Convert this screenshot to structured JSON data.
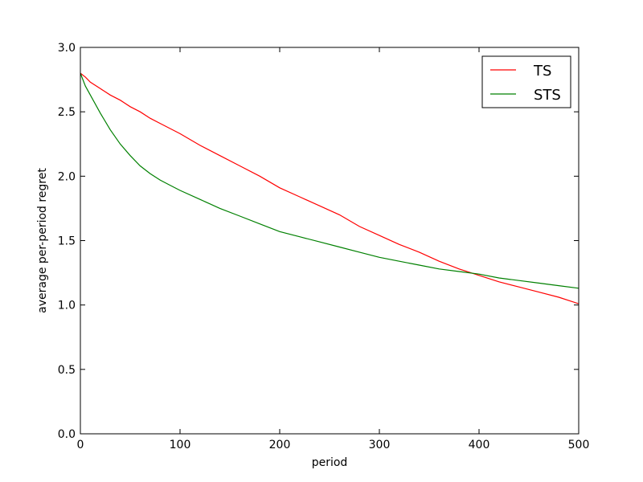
{
  "chart_data": {
    "type": "line",
    "title": "",
    "xlabel": "period",
    "ylabel": "average per-period regret",
    "xlim": [
      0,
      500
    ],
    "ylim": [
      0.0,
      3.0
    ],
    "x_ticks": [
      0,
      100,
      200,
      300,
      400,
      500
    ],
    "y_ticks": [
      0.0,
      0.5,
      1.0,
      1.5,
      2.0,
      2.5,
      3.0
    ],
    "x_tick_labels": [
      "0",
      "100",
      "200",
      "300",
      "400",
      "500"
    ],
    "y_tick_labels": [
      "0.0",
      "0.5",
      "1.0",
      "1.5",
      "2.0",
      "2.5",
      "3.0"
    ],
    "grid": false,
    "legend_position": "top-right",
    "x": [
      0,
      5,
      10,
      20,
      30,
      40,
      50,
      60,
      70,
      80,
      90,
      100,
      120,
      140,
      160,
      180,
      200,
      220,
      240,
      260,
      280,
      300,
      320,
      340,
      360,
      380,
      400,
      420,
      440,
      460,
      480,
      500
    ],
    "series": [
      {
        "name": "TS",
        "color": "#ff0000",
        "values": [
          2.8,
          2.77,
          2.73,
          2.68,
          2.63,
          2.59,
          2.54,
          2.5,
          2.45,
          2.41,
          2.37,
          2.33,
          2.24,
          2.16,
          2.08,
          2.0,
          1.91,
          1.84,
          1.77,
          1.7,
          1.61,
          1.54,
          1.47,
          1.41,
          1.34,
          1.28,
          1.23,
          1.18,
          1.14,
          1.1,
          1.06,
          1.01
        ]
      },
      {
        "name": "STS",
        "color": "#008000",
        "values": [
          2.8,
          2.7,
          2.63,
          2.49,
          2.36,
          2.25,
          2.16,
          2.08,
          2.02,
          1.97,
          1.93,
          1.89,
          1.82,
          1.75,
          1.69,
          1.63,
          1.57,
          1.53,
          1.49,
          1.45,
          1.41,
          1.37,
          1.34,
          1.31,
          1.28,
          1.26,
          1.24,
          1.21,
          1.19,
          1.17,
          1.15,
          1.13
        ]
      }
    ]
  }
}
